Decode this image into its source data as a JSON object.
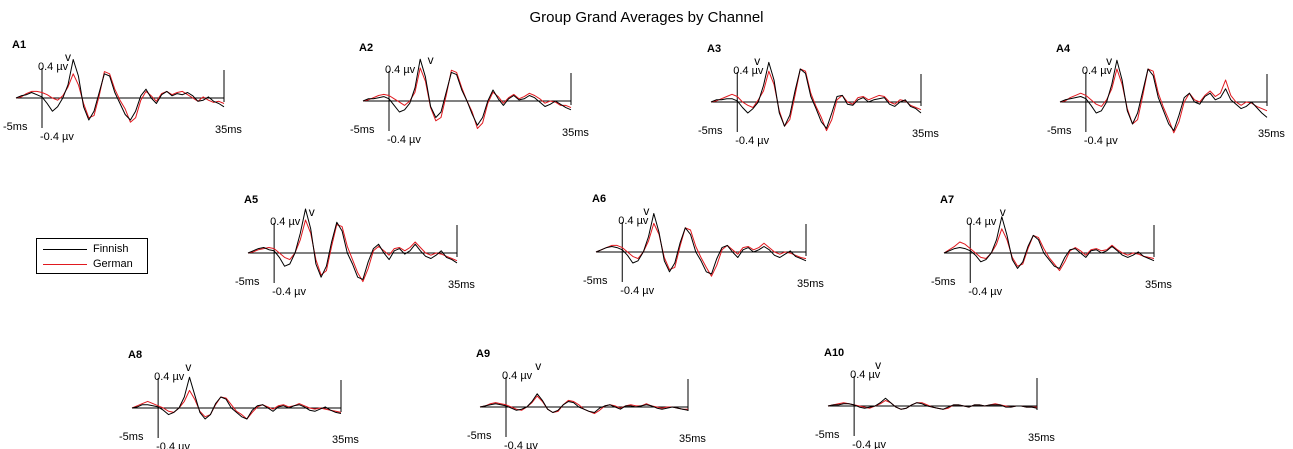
{
  "chart_data": {
    "type": "line",
    "title": "Group Grand Averages by Channel",
    "x_unit": "ms",
    "xlim": [
      -5,
      35
    ],
    "ylim": [
      -0.4,
      0.4
    ],
    "x_start_label": "-5ms",
    "x_end_label": "35ms",
    "y_top_label": "0.4 µv",
    "y_bottom_label": "-0.4 µv",
    "peak_marker": "v",
    "legend": {
      "placement": "left",
      "entries": [
        {
          "name": "Finnish",
          "color": "#000000"
        },
        {
          "name": "German",
          "color": "#e0191f"
        }
      ]
    },
    "channels": [
      {
        "name": "A1",
        "peak_marker_ms": 5.0
      },
      {
        "name": "A2",
        "peak_marker_ms": 8.0
      },
      {
        "name": "A3",
        "peak_marker_ms": 3.8
      },
      {
        "name": "A4",
        "peak_marker_ms": 4.5
      },
      {
        "name": "A5",
        "peak_marker_ms": 7.2
      },
      {
        "name": "A6",
        "peak_marker_ms": 4.6
      },
      {
        "name": "A7",
        "peak_marker_ms": 6.2
      },
      {
        "name": "A8",
        "peak_marker_ms": 5.8
      },
      {
        "name": "A9",
        "peak_marker_ms": 6.2
      },
      {
        "name": "A10",
        "peak_marker_ms": 4.6
      }
    ],
    "x": [
      -5,
      -4,
      -3,
      -2,
      -1,
      0,
      1,
      2,
      3,
      4,
      5,
      6,
      7,
      8,
      9,
      10,
      11,
      12,
      13,
      14,
      15,
      16,
      17,
      18,
      19,
      20,
      21,
      22,
      23,
      24,
      25,
      26,
      27,
      28,
      29,
      30,
      31,
      32,
      33,
      34,
      35
    ],
    "series": {
      "A1": {
        "Finnish": [
          0.0,
          0.02,
          0.03,
          0.05,
          0.03,
          0.01,
          -0.05,
          -0.12,
          -0.08,
          0.0,
          0.12,
          0.35,
          0.2,
          -0.08,
          -0.2,
          -0.12,
          0.05,
          0.22,
          0.2,
          0.05,
          -0.05,
          -0.15,
          -0.2,
          -0.12,
          0.02,
          0.08,
          0.0,
          -0.05,
          0.03,
          0.06,
          0.02,
          0.04,
          0.03,
          0.05,
          0.02,
          -0.03,
          -0.02,
          0.01,
          -0.03,
          -0.05,
          -0.08
        ],
        "German": [
          0.0,
          0.01,
          0.04,
          0.06,
          0.06,
          0.05,
          0.03,
          0.0,
          -0.02,
          0.02,
          0.1,
          0.22,
          0.12,
          -0.05,
          -0.18,
          -0.16,
          0.02,
          0.24,
          0.22,
          0.08,
          -0.02,
          -0.1,
          -0.22,
          -0.18,
          -0.02,
          0.06,
          0.02,
          -0.03,
          0.04,
          0.06,
          0.03,
          0.05,
          0.06,
          0.03,
          0.0,
          -0.03,
          0.01,
          -0.02,
          -0.04,
          -0.03,
          -0.05
        ]
      },
      "A2": {
        "Finnish": [
          0.0,
          0.02,
          0.02,
          0.03,
          0.04,
          0.02,
          -0.04,
          -0.1,
          -0.08,
          -0.02,
          0.12,
          0.38,
          0.22,
          -0.05,
          -0.15,
          -0.1,
          0.08,
          0.26,
          0.24,
          0.1,
          0.0,
          -0.12,
          -0.22,
          -0.15,
          0.0,
          0.1,
          0.02,
          -0.04,
          0.02,
          0.05,
          0.01,
          0.02,
          0.05,
          0.03,
          -0.01,
          -0.05,
          -0.03,
          0.0,
          -0.03,
          -0.06,
          -0.08
        ],
        "German": [
          0.0,
          0.01,
          0.03,
          0.05,
          0.06,
          0.05,
          0.02,
          -0.01,
          -0.04,
          0.0,
          0.08,
          0.3,
          0.18,
          -0.06,
          -0.18,
          -0.15,
          0.05,
          0.28,
          0.26,
          0.12,
          0.0,
          -0.1,
          -0.25,
          -0.2,
          -0.02,
          0.08,
          0.04,
          -0.02,
          0.03,
          0.06,
          0.02,
          0.04,
          0.07,
          0.05,
          0.02,
          -0.02,
          0.0,
          -0.01,
          -0.04,
          -0.04,
          -0.06
        ]
      },
      "A3": {
        "Finnish": [
          0.0,
          0.02,
          0.02,
          0.03,
          0.03,
          0.01,
          -0.05,
          -0.1,
          -0.06,
          0.0,
          0.15,
          0.36,
          0.2,
          -0.1,
          -0.22,
          -0.12,
          0.1,
          0.3,
          0.26,
          0.05,
          -0.06,
          -0.18,
          -0.24,
          -0.1,
          0.05,
          0.06,
          -0.02,
          -0.03,
          0.02,
          0.04,
          0.0,
          0.02,
          0.03,
          0.04,
          -0.02,
          -0.04,
          0.0,
          0.02,
          -0.04,
          -0.06,
          -0.1
        ],
        "German": [
          0.0,
          0.01,
          0.03,
          0.05,
          0.07,
          0.05,
          0.0,
          -0.03,
          -0.05,
          0.02,
          0.1,
          0.28,
          0.16,
          -0.08,
          -0.22,
          -0.16,
          0.06,
          0.3,
          0.28,
          0.08,
          -0.04,
          -0.14,
          -0.26,
          -0.16,
          0.02,
          0.06,
          0.0,
          -0.02,
          0.04,
          0.05,
          0.02,
          0.04,
          0.06,
          0.05,
          0.0,
          -0.02,
          0.02,
          0.01,
          -0.03,
          -0.05,
          -0.07
        ]
      },
      "A4": {
        "Finnish": [
          0.0,
          0.02,
          0.03,
          0.04,
          0.05,
          0.03,
          -0.03,
          -0.1,
          -0.08,
          0.0,
          0.16,
          0.38,
          0.2,
          -0.08,
          -0.2,
          -0.1,
          0.1,
          0.3,
          0.24,
          0.04,
          -0.08,
          -0.2,
          -0.26,
          -0.12,
          0.04,
          0.08,
          0.0,
          -0.02,
          0.05,
          0.08,
          0.02,
          0.04,
          0.12,
          0.02,
          -0.02,
          -0.06,
          -0.04,
          0.0,
          -0.05,
          -0.1,
          -0.14
        ],
        "German": [
          0.0,
          0.01,
          0.04,
          0.06,
          0.08,
          0.06,
          0.02,
          -0.02,
          -0.04,
          0.02,
          0.12,
          0.3,
          0.16,
          -0.06,
          -0.2,
          -0.16,
          0.06,
          0.3,
          0.28,
          0.08,
          -0.05,
          -0.16,
          -0.28,
          -0.18,
          0.0,
          0.08,
          0.02,
          0.0,
          0.06,
          0.1,
          0.05,
          0.08,
          0.2,
          0.06,
          0.0,
          -0.03,
          0.0,
          -0.01,
          -0.04,
          -0.06,
          -0.08
        ]
      },
      "A5": {
        "Finnish": [
          0.0,
          0.02,
          0.04,
          0.05,
          0.03,
          0.02,
          -0.04,
          -0.12,
          -0.1,
          0.0,
          0.18,
          0.4,
          0.22,
          -0.1,
          -0.22,
          -0.12,
          0.1,
          0.28,
          0.2,
          0.0,
          -0.1,
          -0.22,
          -0.24,
          -0.08,
          0.04,
          0.08,
          0.0,
          -0.06,
          0.02,
          0.04,
          -0.01,
          0.02,
          0.08,
          0.02,
          -0.03,
          -0.05,
          -0.02,
          0.02,
          -0.04,
          -0.06,
          -0.09
        ],
        "German": [
          0.0,
          0.01,
          0.03,
          0.04,
          0.05,
          0.04,
          0.0,
          -0.04,
          -0.06,
          0.0,
          0.12,
          0.3,
          0.18,
          -0.06,
          -0.2,
          -0.16,
          0.06,
          0.26,
          0.24,
          0.06,
          -0.06,
          -0.18,
          -0.26,
          -0.14,
          0.02,
          0.06,
          0.02,
          -0.02,
          0.04,
          0.05,
          0.02,
          0.05,
          0.1,
          0.05,
          0.0,
          -0.02,
          0.0,
          -0.01,
          -0.03,
          -0.05,
          -0.07
        ]
      },
      "A6": {
        "Finnish": [
          0.0,
          0.02,
          0.04,
          0.05,
          0.04,
          0.02,
          -0.03,
          -0.1,
          -0.08,
          0.0,
          0.14,
          0.35,
          0.18,
          -0.08,
          -0.18,
          -0.1,
          0.08,
          0.22,
          0.16,
          0.0,
          -0.08,
          -0.18,
          -0.2,
          -0.06,
          0.04,
          0.06,
          0.0,
          -0.05,
          0.02,
          0.04,
          0.0,
          0.02,
          0.05,
          0.02,
          -0.03,
          -0.05,
          -0.02,
          0.01,
          -0.04,
          -0.06,
          -0.08
        ],
        "German": [
          0.0,
          0.02,
          0.04,
          0.06,
          0.06,
          0.04,
          0.0,
          -0.04,
          -0.06,
          0.0,
          0.1,
          0.26,
          0.16,
          -0.05,
          -0.16,
          -0.14,
          0.05,
          0.22,
          0.2,
          0.05,
          -0.05,
          -0.14,
          -0.22,
          -0.12,
          0.02,
          0.06,
          0.02,
          -0.02,
          0.04,
          0.05,
          0.02,
          0.04,
          0.08,
          0.04,
          0.0,
          -0.02,
          0.0,
          -0.01,
          -0.03,
          -0.05,
          -0.06
        ]
      },
      "A7": {
        "Finnish": [
          0.0,
          0.02,
          0.04,
          0.05,
          0.04,
          0.02,
          -0.02,
          -0.08,
          -0.06,
          0.0,
          0.12,
          0.33,
          0.16,
          -0.06,
          -0.14,
          -0.08,
          0.06,
          0.16,
          0.12,
          0.0,
          -0.06,
          -0.12,
          -0.14,
          -0.04,
          0.03,
          0.04,
          0.0,
          -0.04,
          0.02,
          0.03,
          0.0,
          0.02,
          0.06,
          0.02,
          -0.02,
          -0.04,
          -0.02,
          0.01,
          -0.03,
          -0.05,
          -0.07
        ],
        "German": [
          0.0,
          0.03,
          0.06,
          0.1,
          0.08,
          0.04,
          0.0,
          -0.04,
          -0.05,
          0.0,
          0.08,
          0.22,
          0.12,
          -0.04,
          -0.12,
          -0.1,
          0.04,
          0.16,
          0.14,
          0.04,
          -0.04,
          -0.1,
          -0.16,
          -0.08,
          0.02,
          0.05,
          0.02,
          -0.02,
          0.03,
          0.04,
          0.02,
          0.03,
          0.07,
          0.03,
          0.0,
          -0.02,
          0.0,
          -0.01,
          -0.03,
          -0.04,
          -0.05
        ]
      },
      "A8": {
        "Finnish": [
          0.0,
          0.01,
          0.03,
          0.03,
          0.02,
          0.01,
          -0.02,
          -0.06,
          -0.04,
          0.0,
          0.1,
          0.28,
          0.12,
          -0.04,
          -0.1,
          -0.06,
          0.04,
          0.1,
          0.08,
          0.0,
          -0.04,
          -0.08,
          -0.1,
          -0.02,
          0.02,
          0.03,
          0.0,
          -0.03,
          0.01,
          0.02,
          0.0,
          0.02,
          0.03,
          0.01,
          -0.02,
          -0.03,
          -0.01,
          0.01,
          -0.02,
          -0.04,
          -0.05
        ],
        "German": [
          0.0,
          0.02,
          0.04,
          0.06,
          0.04,
          0.02,
          0.0,
          -0.03,
          -0.04,
          0.0,
          0.06,
          0.16,
          0.08,
          -0.03,
          -0.08,
          -0.06,
          0.03,
          0.1,
          0.09,
          0.03,
          -0.03,
          -0.06,
          -0.1,
          -0.04,
          0.01,
          0.03,
          0.01,
          -0.01,
          0.02,
          0.03,
          0.01,
          0.02,
          0.04,
          0.02,
          0.0,
          -0.01,
          0.0,
          -0.01,
          -0.02,
          -0.03,
          -0.04
        ]
      },
      "A9": {
        "Finnish": [
          0.0,
          0.01,
          0.02,
          0.03,
          0.02,
          0.01,
          -0.01,
          -0.03,
          -0.02,
          0.0,
          0.05,
          0.12,
          0.06,
          -0.02,
          -0.05,
          -0.03,
          0.02,
          0.05,
          0.04,
          0.0,
          -0.02,
          -0.04,
          -0.05,
          -0.01,
          0.01,
          0.02,
          0.0,
          -0.02,
          0.01,
          0.01,
          0.0,
          0.01,
          0.02,
          0.01,
          -0.01,
          -0.02,
          -0.01,
          0.0,
          -0.01,
          -0.02,
          -0.03
        ],
        "German": [
          0.0,
          0.01,
          0.03,
          0.04,
          0.03,
          0.02,
          0.0,
          -0.02,
          -0.03,
          0.0,
          0.04,
          0.1,
          0.05,
          -0.02,
          -0.05,
          -0.04,
          0.02,
          0.06,
          0.05,
          0.02,
          -0.02,
          -0.04,
          -0.06,
          -0.03,
          0.01,
          0.02,
          0.01,
          -0.01,
          0.01,
          0.02,
          0.01,
          0.01,
          0.03,
          0.01,
          0.0,
          -0.01,
          0.0,
          0.0,
          -0.01,
          -0.02,
          -0.02
        ]
      },
      "A10": {
        "Finnish": [
          0.0,
          0.01,
          0.01,
          0.02,
          0.02,
          0.01,
          -0.01,
          -0.02,
          -0.01,
          0.0,
          0.03,
          0.07,
          0.03,
          -0.01,
          -0.03,
          -0.02,
          0.01,
          0.03,
          0.02,
          0.0,
          -0.01,
          -0.02,
          -0.03,
          -0.01,
          0.01,
          0.01,
          0.0,
          -0.01,
          0.01,
          0.01,
          0.0,
          0.01,
          0.01,
          0.01,
          -0.01,
          -0.01,
          0.0,
          0.0,
          -0.01,
          -0.01,
          -0.02
        ],
        "German": [
          0.0,
          0.01,
          0.02,
          0.03,
          0.02,
          0.01,
          0.0,
          -0.01,
          -0.02,
          0.0,
          0.02,
          0.05,
          0.03,
          -0.01,
          -0.03,
          -0.02,
          0.01,
          0.03,
          0.03,
          0.01,
          -0.01,
          -0.02,
          -0.03,
          -0.02,
          0.01,
          0.01,
          0.0,
          -0.01,
          0.01,
          0.01,
          0.0,
          0.01,
          0.02,
          0.01,
          0.0,
          -0.01,
          0.0,
          0.0,
          -0.01,
          -0.01,
          -0.01
        ]
      }
    }
  }
}
